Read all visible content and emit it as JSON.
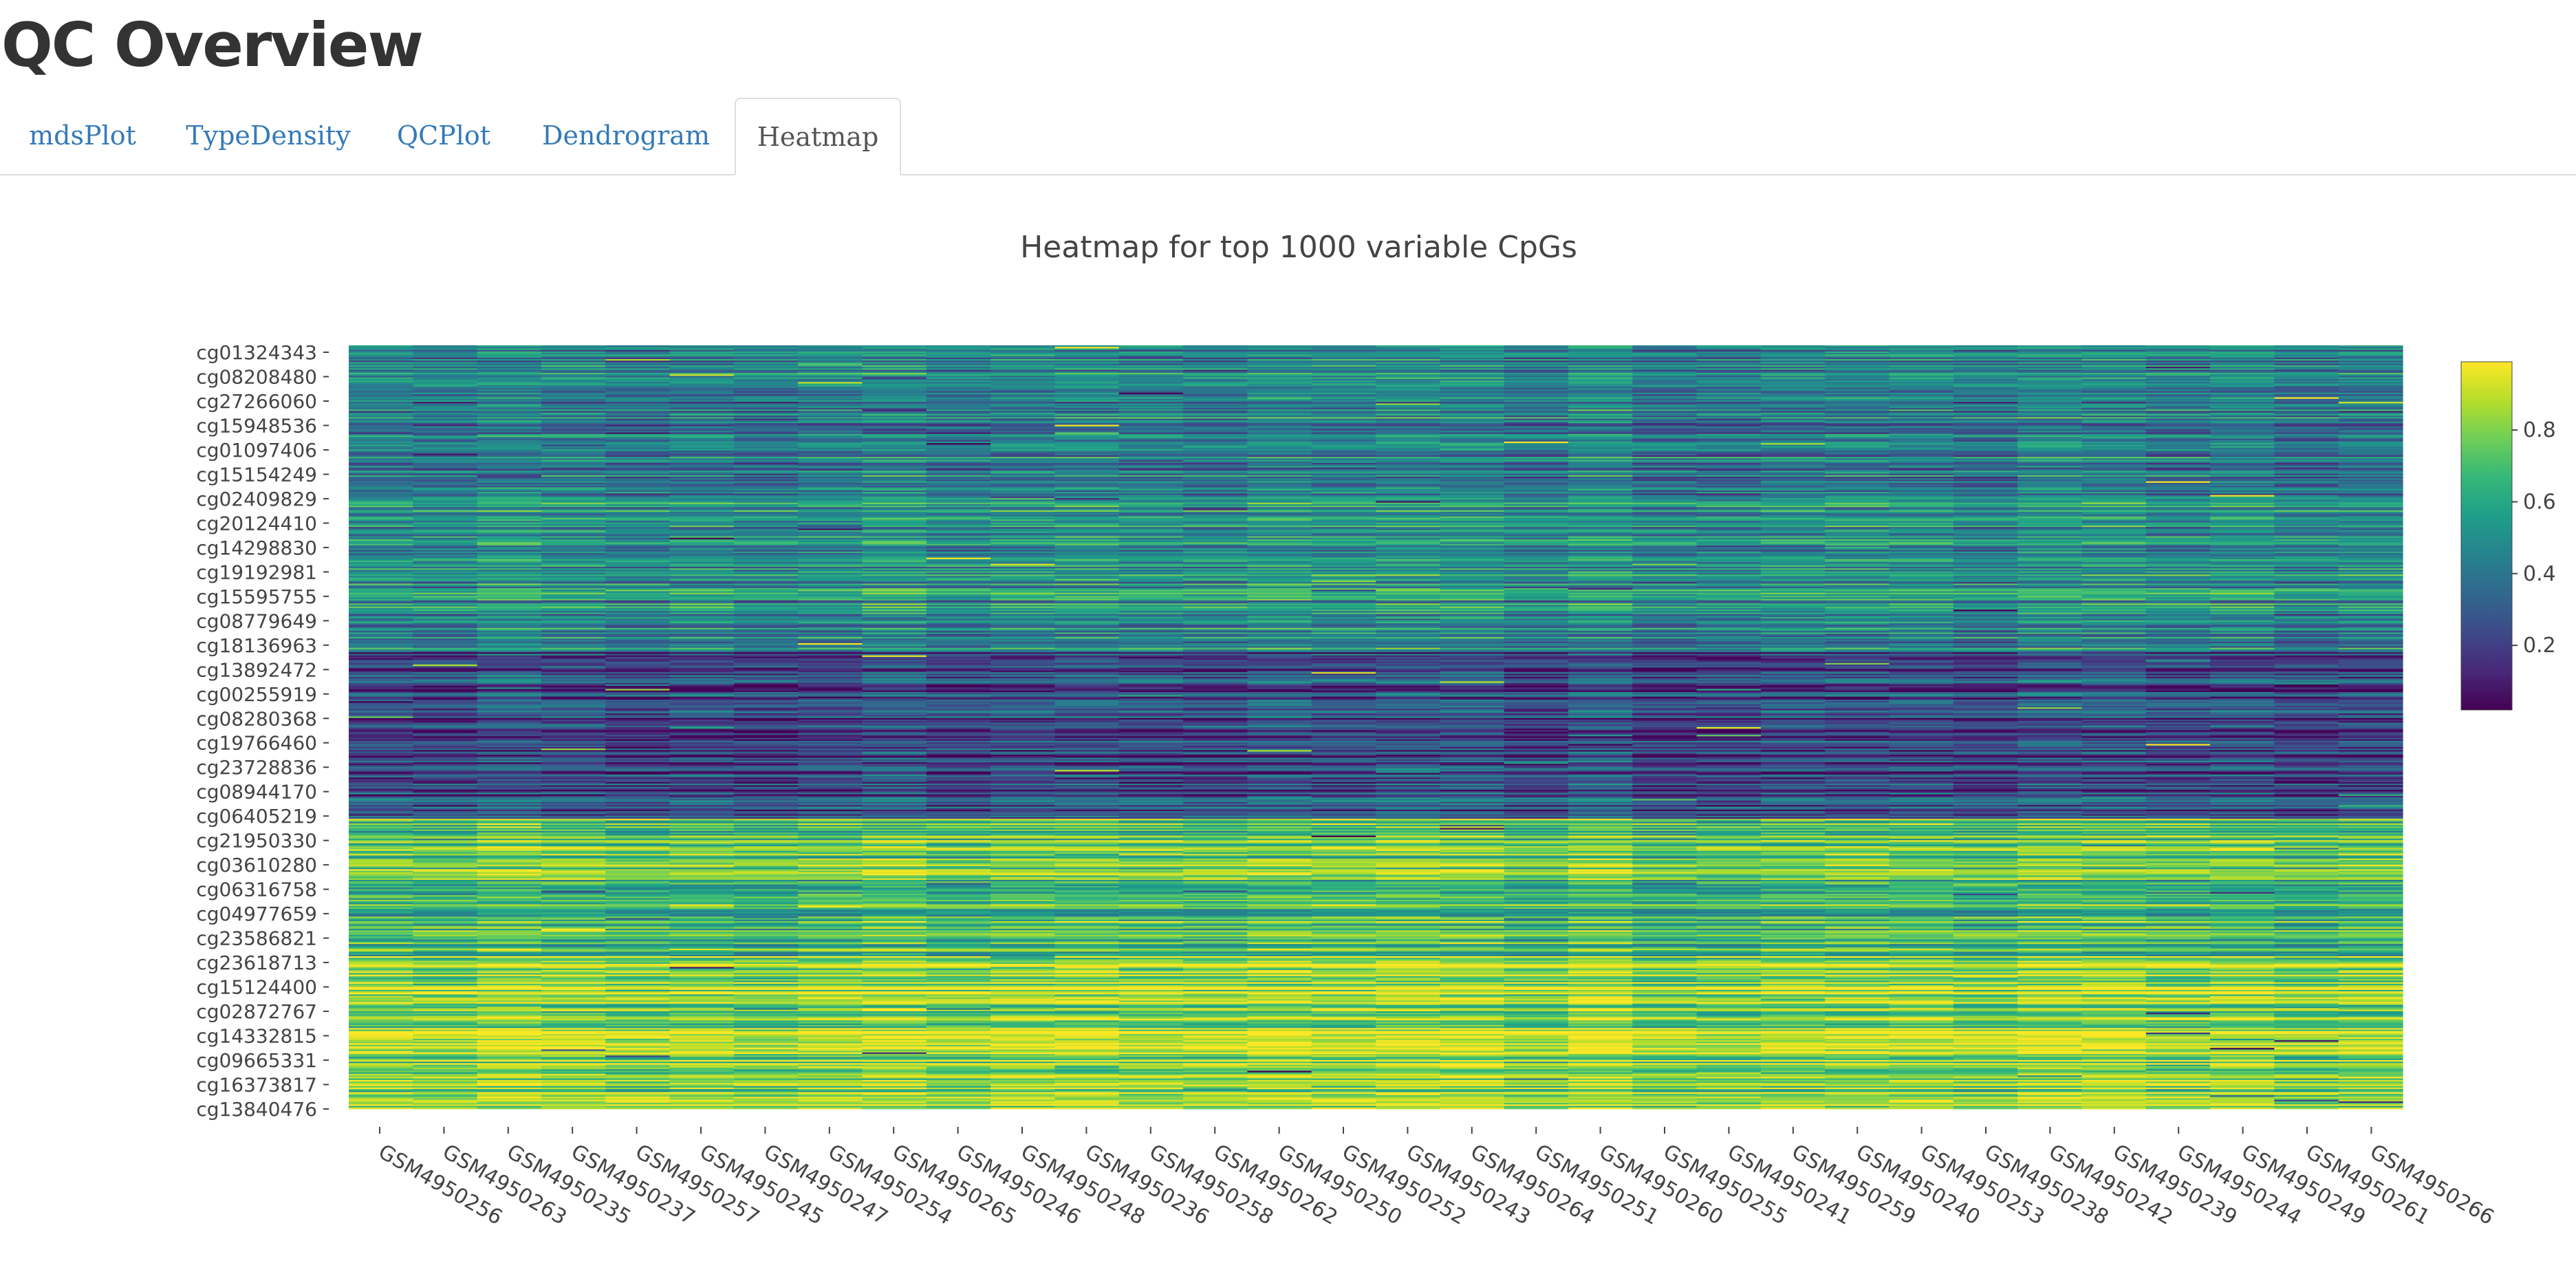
{
  "page": {
    "title": "QC Overview"
  },
  "tabs": [
    {
      "label": "mdsPlot",
      "active": false
    },
    {
      "label": "TypeDensity",
      "active": false
    },
    {
      "label": "QCPlot",
      "active": false
    },
    {
      "label": "Dendrogram",
      "active": false
    },
    {
      "label": "Heatmap",
      "active": true
    }
  ],
  "chart_data": {
    "type": "heatmap",
    "title": "Heatmap for top 1000 variable CpGs",
    "colorscale": "viridis",
    "colorscale_stops": [
      "#440154",
      "#482878",
      "#3e4a89",
      "#31688e",
      "#26828e",
      "#1f9e89",
      "#35b779",
      "#6ece58",
      "#b5de2b",
      "#fde725"
    ],
    "zrange": [
      0.02,
      0.99
    ],
    "colorbar_ticks": [
      0.2,
      0.4,
      0.6,
      0.8
    ],
    "n_rows": 1000,
    "y_tick_labels": [
      "cg01324343",
      "cg08208480",
      "cg27266060",
      "cg15948536",
      "cg01097406",
      "cg15154249",
      "cg02409829",
      "cg20124410",
      "cg14298830",
      "cg19192981",
      "cg15595755",
      "cg08779649",
      "cg18136963",
      "cg13892472",
      "cg00255919",
      "cg08280368",
      "cg19766460",
      "cg23728836",
      "cg08944170",
      "cg06405219",
      "cg21950330",
      "cg03610280",
      "cg06316758",
      "cg04977659",
      "cg23586821",
      "cg23618713",
      "cg15124400",
      "cg02872767",
      "cg14332815",
      "cg09665331",
      "cg16373817",
      "cg13840476"
    ],
    "x_categories": [
      "GSM4950256",
      "GSM4950263",
      "GSM4950235",
      "GSM4950237",
      "GSM4950257",
      "GSM4950245",
      "GSM4950247",
      "GSM4950254",
      "GSM4950265",
      "GSM4950246",
      "GSM4950248",
      "GSM4950236",
      "GSM4950258",
      "GSM4950262",
      "GSM4950250",
      "GSM4950252",
      "GSM4950243",
      "GSM4950264",
      "GSM4950251",
      "GSM4950260",
      "GSM4950255",
      "GSM4950241",
      "GSM4950259",
      "GSM4950240",
      "GSM4950253",
      "GSM4950238",
      "GSM4950242",
      "GSM4950239",
      "GSM4950244",
      "GSM4950249",
      "GSM4950261",
      "GSM4950266"
    ],
    "row_band_means": [
      {
        "rows": "1-200",
        "approx_value": 0.45
      },
      {
        "rows": "200-400",
        "approx_value": 0.5
      },
      {
        "rows": "400-620",
        "approx_value": 0.25
      },
      {
        "rows": "620-800",
        "approx_value": 0.72
      },
      {
        "rows": "800-1000",
        "approx_value": 0.85
      }
    ]
  }
}
